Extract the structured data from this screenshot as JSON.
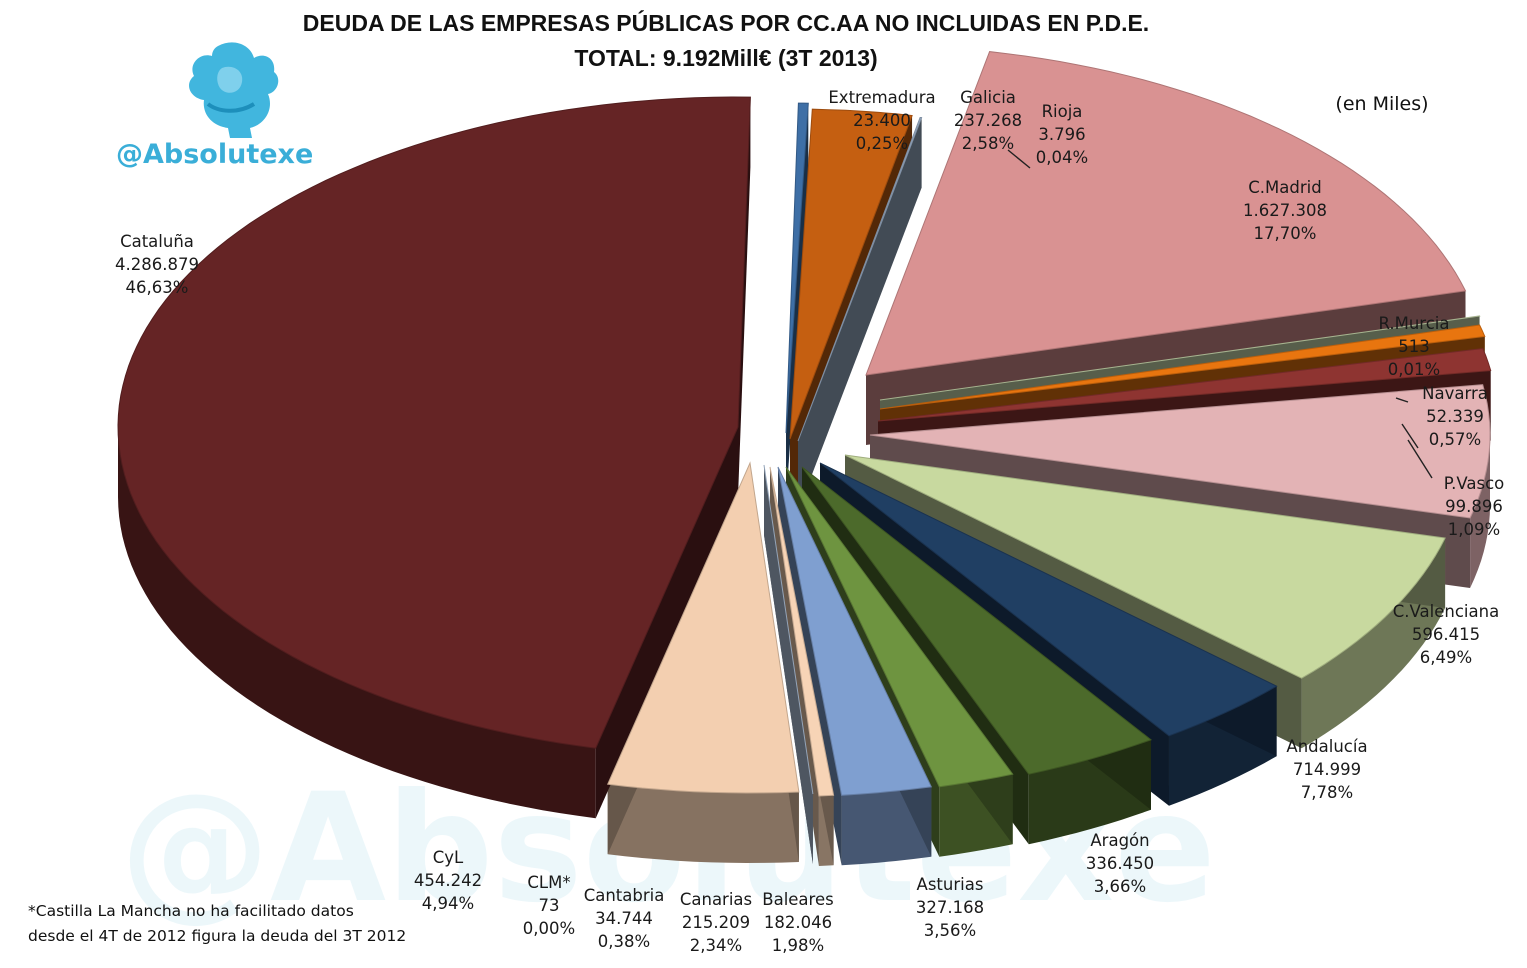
{
  "chart_data": {
    "type": "pie",
    "title": "DEUDA DE LAS EMPRESAS PÚBLICAS POR CC.AA NO INCLUIDAS EN P.D.E.",
    "subtitle": "TOTAL: 9.192Mill€ (3T 2013)",
    "unit_note": "(en Miles)",
    "brand": "@Absolutexe",
    "footnote": [
      "*Castilla La Mancha no ha facilitado datos",
      "desde el 4T de 2012 figura la deuda del 3T 2012"
    ],
    "slices": [
      {
        "name": "Extremadura",
        "value": "23.400",
        "percent": "0,25%",
        "value_num": 23400,
        "color": "#3e6fa6"
      },
      {
        "name": "Galicia",
        "value": "237.268",
        "percent": "2,58%",
        "value_num": 237268,
        "color": "#c55f11"
      },
      {
        "name": "Rioja",
        "value": "3.796",
        "percent": "0,04%",
        "value_num": 3796,
        "color": "#9eb2cb"
      },
      {
        "name": "C.Madrid",
        "value": "1.627.308",
        "percent": "17,70%",
        "value_num": 1627308,
        "color": "#d99292"
      },
      {
        "name": "R.Murcia",
        "value": "513",
        "percent": "0,01%",
        "value_num": 513,
        "color": "#cfe0b3"
      },
      {
        "name": "Navarra",
        "value": "52.339",
        "percent": "0,57%",
        "value_num": 52339,
        "color": "#e8750f"
      },
      {
        "name": "P.Vasco",
        "value": "99.896",
        "percent": "1,09%",
        "value_num": 99896,
        "color": "#8e3431"
      },
      {
        "name": "C.Valenciana",
        "value": "596.415",
        "percent": "6,49%",
        "value_num": 596415,
        "color": "#e3b3b5"
      },
      {
        "name": "Andalucía",
        "value": "714.999",
        "percent": "7,78%",
        "value_num": 714999,
        "color": "#c8d99f"
      },
      {
        "name": "Aragón",
        "value": "336.450",
        "percent": "3,66%",
        "value_num": 336450,
        "color": "#203f63"
      },
      {
        "name": "Asturias",
        "value": "327.168",
        "percent": "3,56%",
        "value_num": 327168,
        "color": "#4c6a2b"
      },
      {
        "name": "Baleares",
        "value": "182.046",
        "percent": "1,98%",
        "value_num": 182046,
        "color": "#6e9440"
      },
      {
        "name": "Canarias",
        "value": "215.209",
        "percent": "2,34%",
        "value_num": 215209,
        "color": "#7f9fd0"
      },
      {
        "name": "Cantabria",
        "value": "34.744",
        "percent": "0,38%",
        "value_num": 34744,
        "color": "#f7d4b6"
      },
      {
        "name": "CLM*",
        "value": "73",
        "percent": "0,00%",
        "value_num": 73,
        "color": "#b9cde6"
      },
      {
        "name": "CyL",
        "value": "454.242",
        "percent": "4,94%",
        "value_num": 454242,
        "color": "#f3cfb0"
      },
      {
        "name": "Cataluña",
        "value": "4.286.879",
        "percent": "46,63%",
        "value_num": 4286879,
        "color": "#652425"
      }
    ]
  }
}
